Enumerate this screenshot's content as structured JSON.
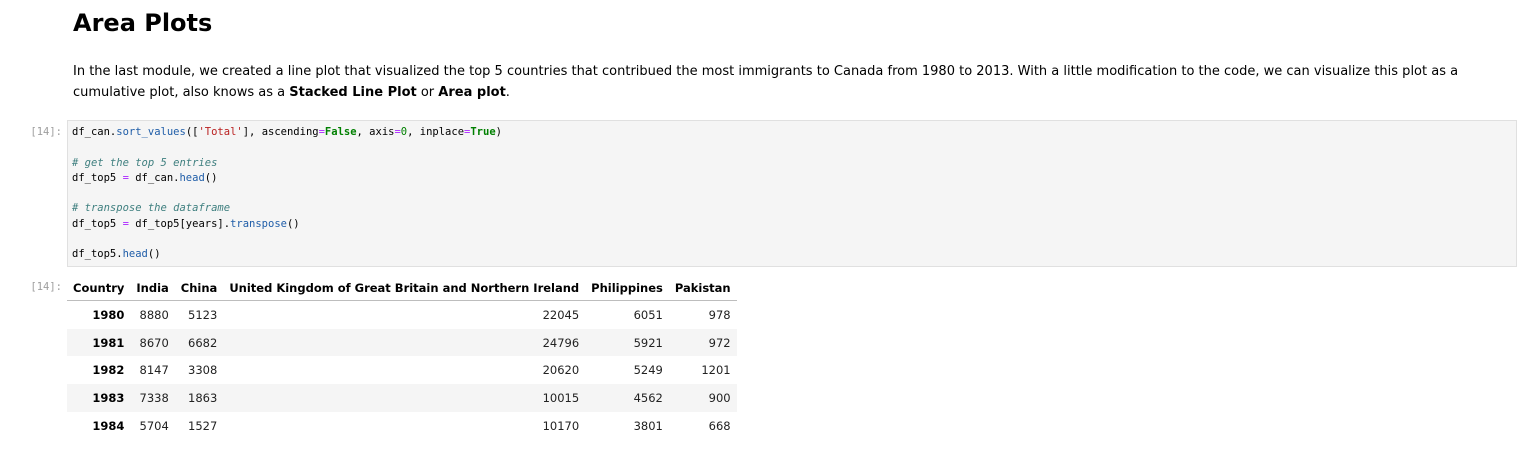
{
  "markdown": {
    "heading": "Area Plots",
    "paragraph": [
      {
        "text": "In the last module, we created a line plot that visualized the top 5 countries that contribued the most immigrants to Canada from 1980 to 2013. With a little modification to the code, we can visualize this plot as a cumulative plot, also knows as a "
      },
      {
        "text": "Stacked Line Plot",
        "bold": true
      },
      {
        "text": " or "
      },
      {
        "text": "Area plot",
        "bold": true
      },
      {
        "text": "."
      }
    ]
  },
  "code_cell": {
    "prompt": "[14]:",
    "lines": [
      [
        {
          "text": "df_can."
        },
        {
          "text": "sort_values",
          "color": "#1f5da8"
        },
        {
          "text": "(["
        },
        {
          "text": "'Total'",
          "color": "#ba2121"
        },
        {
          "text": "], ascending"
        },
        {
          "text": "=",
          "color": "#aa22ff"
        },
        {
          "text": "False",
          "color": "#008000",
          "bold": true
        },
        {
          "text": ", axis"
        },
        {
          "text": "=",
          "color": "#aa22ff"
        },
        {
          "text": "0",
          "color": "#008000"
        },
        {
          "text": ", inplace"
        },
        {
          "text": "=",
          "color": "#aa22ff"
        },
        {
          "text": "True",
          "color": "#008000",
          "bold": true
        },
        {
          "text": ")"
        }
      ],
      [],
      [
        {
          "text": "# get the top 5 entries",
          "color": "#408080",
          "italic": true
        }
      ],
      [
        {
          "text": "df_top5 "
        },
        {
          "text": "=",
          "color": "#aa22ff"
        },
        {
          "text": " df_can."
        },
        {
          "text": "head",
          "color": "#1f5da8"
        },
        {
          "text": "()"
        }
      ],
      [],
      [
        {
          "text": "# transpose the dataframe",
          "color": "#408080",
          "italic": true
        }
      ],
      [
        {
          "text": "df_top5 "
        },
        {
          "text": "=",
          "color": "#aa22ff"
        },
        {
          "text": " df_top5[years]."
        },
        {
          "text": "transpose",
          "color": "#1f5da8"
        },
        {
          "text": "()"
        }
      ],
      [],
      [
        {
          "text": "df_top5."
        },
        {
          "text": "head",
          "color": "#1f5da8"
        },
        {
          "text": "()"
        }
      ]
    ]
  },
  "output_cell": {
    "prompt": "[14]:",
    "table": {
      "index_name": "Country",
      "columns": [
        "India",
        "China",
        "United Kingdom of Great Britain and Northern Ireland",
        "Philippines",
        "Pakistan"
      ],
      "rows": [
        {
          "index": 1980,
          "values": [
            8880,
            5123,
            22045,
            6051,
            978
          ]
        },
        {
          "index": 1981,
          "values": [
            8670,
            6682,
            24796,
            5921,
            972
          ]
        },
        {
          "index": 1982,
          "values": [
            8147,
            3308,
            20620,
            5249,
            1201
          ]
        },
        {
          "index": 1983,
          "values": [
            7338,
            1863,
            10015,
            4562,
            900
          ]
        },
        {
          "index": 1984,
          "values": [
            5704,
            1527,
            10170,
            3801,
            668
          ]
        }
      ]
    }
  }
}
